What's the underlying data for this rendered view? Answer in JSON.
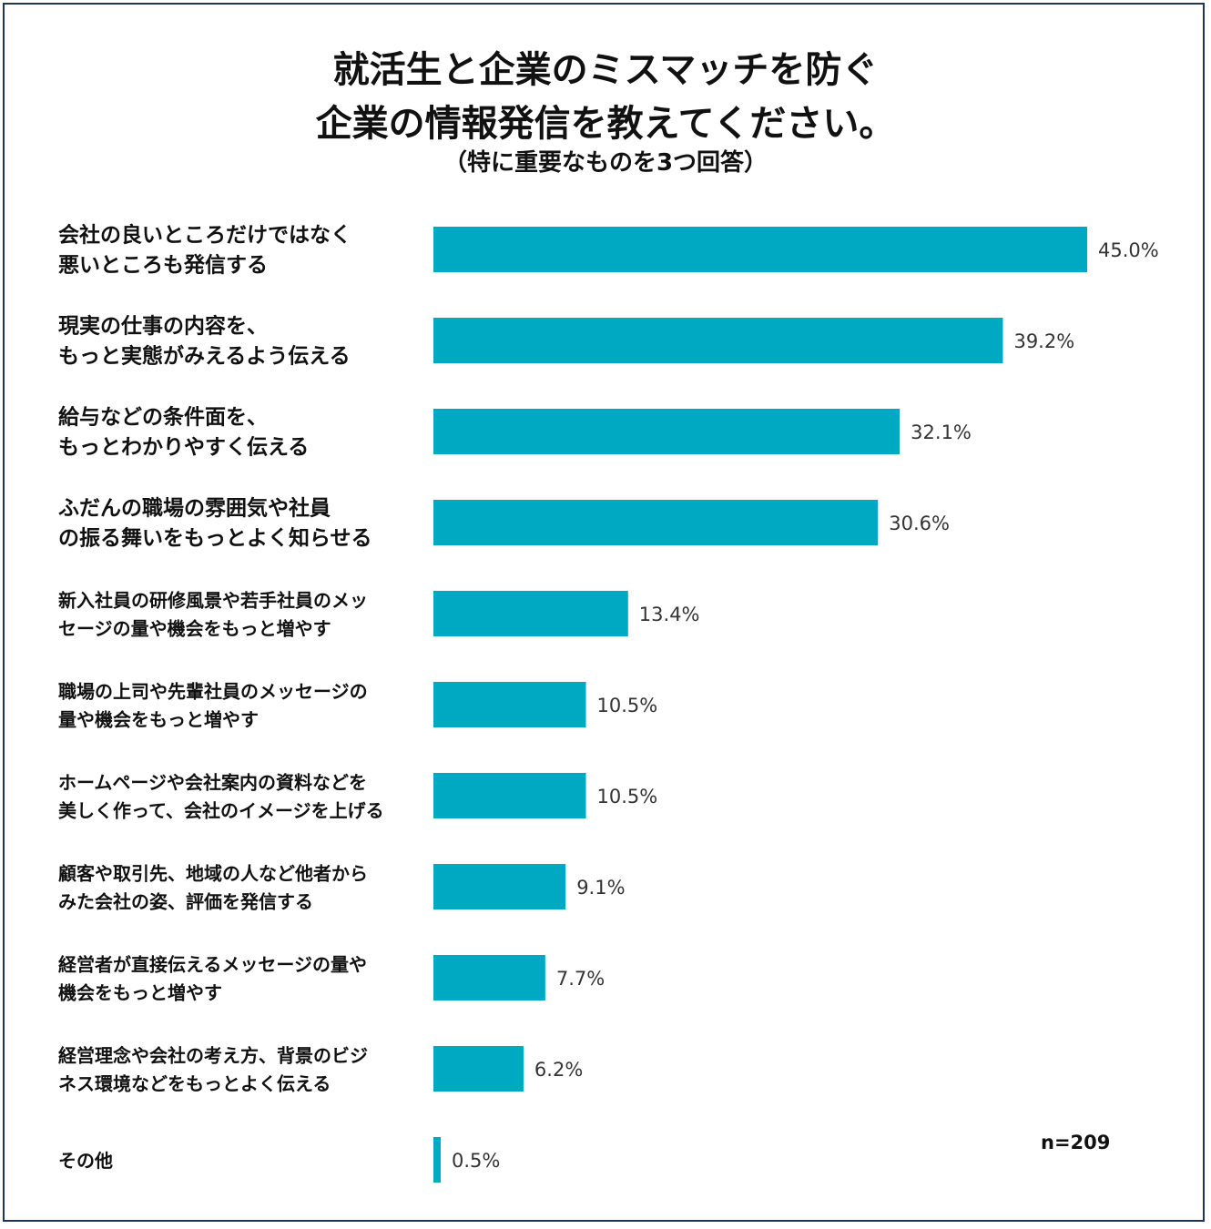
{
  "chart_data": {
    "type": "bar",
    "orientation": "horizontal",
    "title": [
      "就活生と企業のミスマッチを防ぐ",
      "企業の情報発信を教えてください。"
    ],
    "subtitle": "（特に重要なものを3つ回答）",
    "categories": [
      [
        "会社の良いところだけではなく",
        "悪いところも発信する"
      ],
      [
        "現実の仕事の内容を、",
        "もっと実態がみえるよう伝える"
      ],
      [
        "給与などの条件面を、",
        "もっとわかりやすく伝える"
      ],
      [
        "ふだんの職場の雰囲気や社員",
        "の振る舞いをもっとよく知らせる"
      ],
      [
        "新入社員の研修風景や若手社員のメッ",
        "セージの量や機会をもっと増やす"
      ],
      [
        "職場の上司や先輩社員のメッセージの",
        "量や機会をもっと増やす"
      ],
      [
        "ホームページや会社案内の資料などを",
        "美しく作って、会社のイメージを上げる"
      ],
      [
        "顧客や取引先、地域の人など他者から",
        "みた会社の姿、評価を発信する"
      ],
      [
        "経営者が直接伝えるメッセージの量や",
        "機会をもっと増やす"
      ],
      [
        "経営理念や会社の考え方、背景のビジ",
        "ネス環境などをもっとよく伝える"
      ],
      [
        "その他"
      ]
    ],
    "values": [
      45.0,
      39.2,
      32.1,
      30.6,
      13.4,
      10.5,
      10.5,
      9.1,
      7.7,
      6.2,
      0.5
    ],
    "value_labels": [
      "45.0%",
      "39.2%",
      "32.1%",
      "30.6%",
      "13.4%",
      "10.5%",
      "10.5%",
      "9.1%",
      "7.7%",
      "6.2%",
      "0.5%"
    ],
    "xlim": [
      0,
      45
    ],
    "xlabel": "",
    "ylabel": "",
    "grid": false,
    "bar_color": "#00a9c2",
    "note": "n=209"
  }
}
